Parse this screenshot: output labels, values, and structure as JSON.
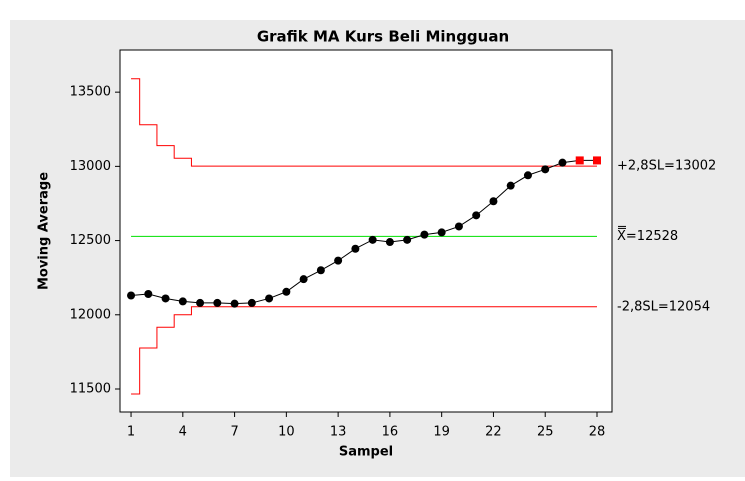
{
  "chart_data": {
    "type": "control",
    "title": "Grafik MA Kurs Beli Mingguan",
    "x_label": "Sampel",
    "y_label": "Moving Average",
    "x": [
      1,
      2,
      3,
      4,
      5,
      6,
      7,
      8,
      9,
      10,
      11,
      12,
      13,
      14,
      15,
      16,
      17,
      18,
      19,
      20,
      21,
      22,
      23,
      24,
      25,
      26,
      27,
      28
    ],
    "values": [
      12130,
      12140,
      12110,
      12090,
      12080,
      12080,
      12075,
      12080,
      12110,
      12155,
      12240,
      12300,
      12365,
      12445,
      12505,
      12490,
      12505,
      12540,
      12555,
      12595,
      12670,
      12765,
      12870,
      12940,
      12980,
      13025,
      13040,
      13040
    ],
    "color": "#000000",
    "point_colors": [
      "#000000",
      "#000000",
      "#000000",
      "#000000",
      "#000000",
      "#000000",
      "#000000",
      "#000000",
      "#000000",
      "#000000",
      "#000000",
      "#000000",
      "#000000",
      "#000000",
      "#000000",
      "#000000",
      "#000000",
      "#000000",
      "#000000",
      "#000000",
      "#000000",
      "#000000",
      "#000000",
      "#000000",
      "#000000",
      "#000000",
      "#ff0000",
      "#ff0000"
    ],
    "point_markers": [
      "circle",
      "circle",
      "circle",
      "circle",
      "circle",
      "circle",
      "circle",
      "circle",
      "circle",
      "circle",
      "circle",
      "circle",
      "circle",
      "circle",
      "circle",
      "circle",
      "circle",
      "circle",
      "circle",
      "circle",
      "circle",
      "circle",
      "circle",
      "circle",
      "circle",
      "circle",
      "square",
      "square"
    ],
    "ucl": [
      13590,
      13280,
      13140,
      13055,
      13002,
      13002,
      13002,
      13002,
      13002,
      13002,
      13002,
      13002,
      13002,
      13002,
      13002,
      13002,
      13002,
      13002,
      13002,
      13002,
      13002,
      13002,
      13002,
      13002,
      13002,
      13002,
      13002,
      13002
    ],
    "lcl": [
      11466,
      11776,
      11916,
      12000,
      12054,
      12054,
      12054,
      12054,
      12054,
      12054,
      12054,
      12054,
      12054,
      12054,
      12054,
      12054,
      12054,
      12054,
      12054,
      12054,
      12054,
      12054,
      12054,
      12054,
      12054,
      12054,
      12054,
      12054
    ],
    "center": 12528,
    "limit_color": "#ff0000",
    "center_color": "#00e000",
    "ucl_label": "+2,8SL=13002",
    "center_label": "X=12528",
    "lcl_label": "-2,8SL=12054",
    "xlim": [
      0.36,
      28.87
    ],
    "ylim": [
      11345,
      13784
    ],
    "xticks": [
      1,
      4,
      7,
      10,
      13,
      16,
      19,
      22,
      25,
      28
    ],
    "yticks": [
      11500,
      12000,
      12500,
      13000,
      13500
    ]
  }
}
